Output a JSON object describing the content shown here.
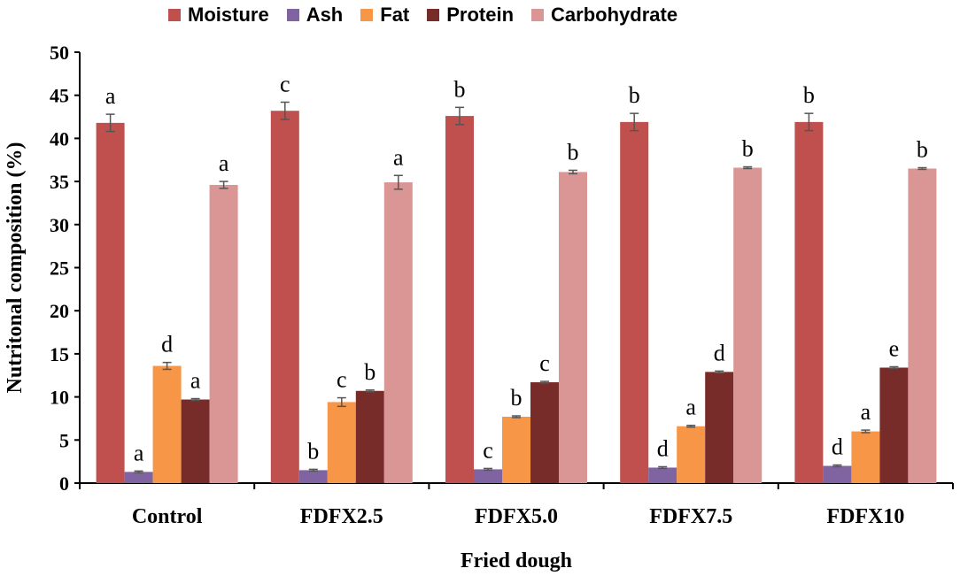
{
  "chart_data": {
    "type": "bar",
    "title": "",
    "xlabel": "Fried dough",
    "ylabel": "Nutritonal composition (%)",
    "ylim": [
      0,
      50
    ],
    "yticks": [
      "0",
      "5",
      "10",
      "15",
      "20",
      "25",
      "30",
      "35",
      "40",
      "45",
      "50"
    ],
    "categories": [
      "Control",
      "FDFX2.5",
      "FDFX5.0",
      "FDFX7.5",
      "FDFX10"
    ],
    "legend_position": "top",
    "series": [
      {
        "name": "Moisture",
        "color": "#c0504d",
        "values": [
          41.8,
          43.2,
          42.6,
          41.9,
          41.9
        ],
        "errors": [
          1.0,
          1.0,
          1.0,
          1.0,
          1.0
        ],
        "letters": [
          "a",
          "c",
          "b",
          "b",
          "b"
        ]
      },
      {
        "name": "Ash",
        "color": "#8064a2",
        "values": [
          1.3,
          1.5,
          1.6,
          1.8,
          2.0
        ],
        "errors": [
          0.1,
          0.1,
          0.1,
          0.1,
          0.1
        ],
        "letters": [
          "a",
          "b",
          "c",
          "d",
          "d"
        ]
      },
      {
        "name": "Fat",
        "color": "#f79646",
        "values": [
          13.6,
          9.4,
          7.7,
          6.6,
          6.0
        ],
        "errors": [
          0.4,
          0.5,
          0.1,
          0.1,
          0.15
        ],
        "letters": [
          "d",
          "c",
          "b",
          "a",
          "a"
        ]
      },
      {
        "name": "Protein",
        "color": "#772c2a",
        "values": [
          9.7,
          10.7,
          11.7,
          12.9,
          13.4
        ],
        "errors": [
          0.1,
          0.1,
          0.1,
          0.1,
          0.1
        ],
        "letters": [
          "a",
          "b",
          "c",
          "d",
          "e"
        ]
      },
      {
        "name": "Carbohydrate",
        "color": "#da9694",
        "values": [
          34.6,
          34.9,
          36.1,
          36.6,
          36.5
        ],
        "errors": [
          0.4,
          0.8,
          0.2,
          0.1,
          0.1
        ],
        "letters": [
          "a",
          "a",
          "b",
          "b",
          "b"
        ]
      }
    ]
  }
}
